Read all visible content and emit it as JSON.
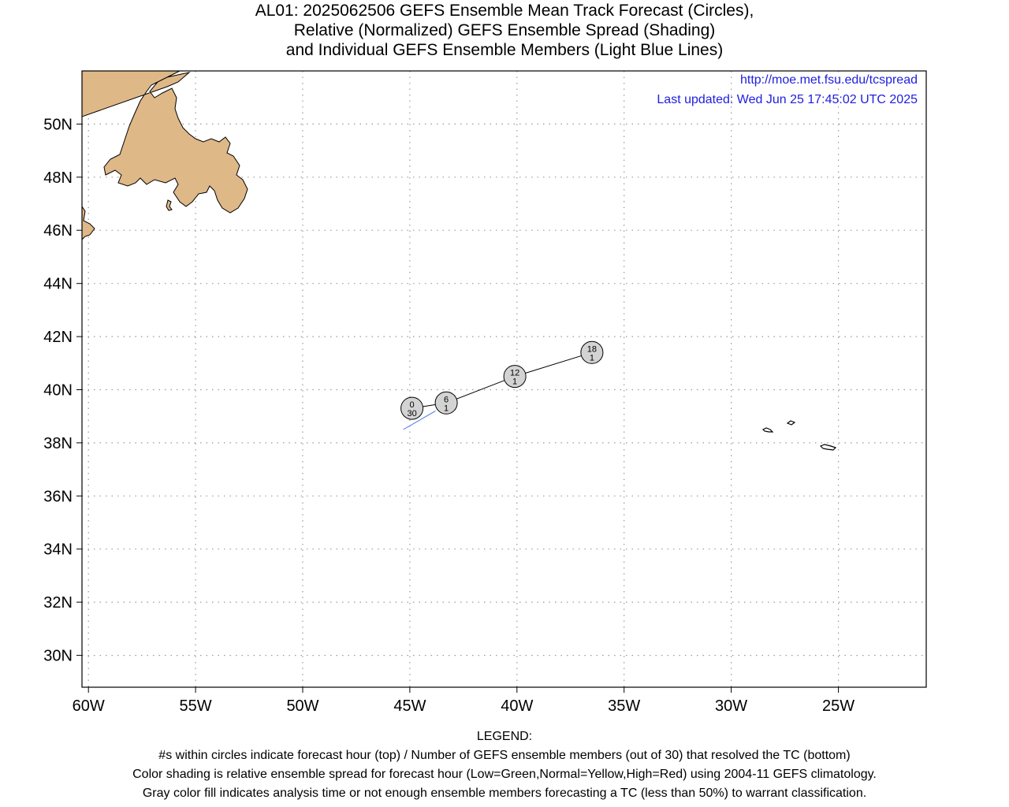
{
  "title": {
    "line1": "AL01: 2025062506 GEFS Ensemble Mean Track Forecast (Circles),",
    "line2": "Relative (Normalized) GEFS Ensemble Spread (Shading)",
    "line3": "and Individual GEFS Ensemble Members (Light Blue Lines)"
  },
  "credits": {
    "url": "http://moe.met.fsu.edu/tcspread",
    "updated": "Last updated: Wed Jun 25 17:45:02 UTC 2025"
  },
  "map": {
    "lon_range": [
      -60.3,
      -20.9
    ],
    "lat_range": [
      28.8,
      52.0
    ],
    "lon_ticks": [
      -60,
      -55,
      -50,
      -45,
      -40,
      -35,
      -30,
      -25
    ],
    "lon_tick_labels": [
      "60W",
      "55W",
      "50W",
      "45W",
      "40W",
      "35W",
      "30W",
      "25W"
    ],
    "lat_ticks": [
      30,
      32,
      34,
      36,
      38,
      40,
      42,
      44,
      46,
      48,
      50
    ],
    "lat_tick_labels": [
      "30N",
      "32N",
      "34N",
      "36N",
      "38N",
      "40N",
      "42N",
      "44N",
      "46N",
      "48N",
      "50N"
    ],
    "grid": true,
    "colors": {
      "land": "#deb887",
      "track": "#000000",
      "member_track": "#4a6ee8",
      "circle_fill": "#d3d3d3",
      "grid": "#999999"
    }
  },
  "track": [
    {
      "hour": "0",
      "members": "30",
      "lon": -44.9,
      "lat": 39.3
    },
    {
      "hour": "6",
      "members": "1",
      "lon": -43.3,
      "lat": 39.5
    },
    {
      "hour": "12",
      "members": "1",
      "lon": -40.1,
      "lat": 40.5
    },
    {
      "hour": "18",
      "members": "1",
      "lon": -36.5,
      "lat": 41.4
    }
  ],
  "member_track": [
    {
      "lon": -45.3,
      "lat": 38.5
    },
    {
      "lon": -43.8,
      "lat": 39.2
    }
  ],
  "legend": {
    "heading": "LEGEND:",
    "line1": "#s within circles indicate forecast hour (top) / Number of GEFS ensemble members (out of 30) that resolved the TC (bottom)",
    "line2": "Color shading is relative ensemble spread for forecast hour (Low=Green,Normal=Yellow,High=Red) using 2004-11 GEFS climatology.",
    "line3": "Gray color fill indicates analysis time or not enough ensemble members forecasting a TC (less than 50%) to warrant classification."
  }
}
